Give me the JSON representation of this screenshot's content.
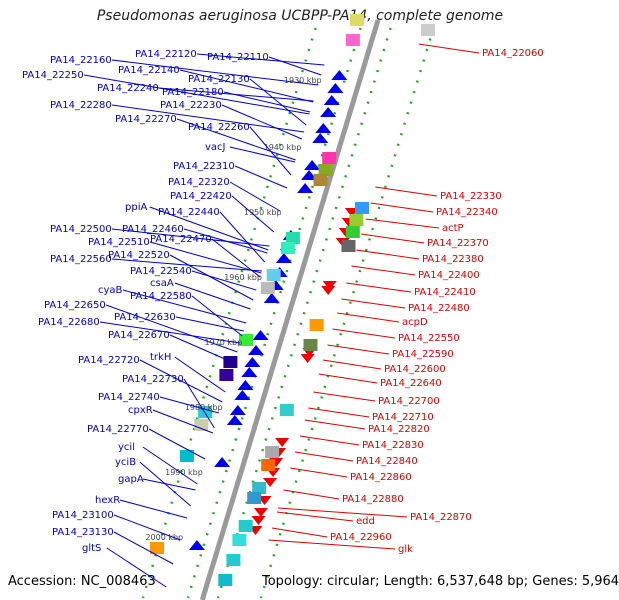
{
  "title": "Pseudomonas aeruginosa UCBPP-PA14, complete genome",
  "footer": {
    "accession": "Accession: NC_008463",
    "topology": "Topology: circular; Length: 6,537,648 bp; Genes: 5,964"
  },
  "colors": {
    "minus_strand_label": "#0000cc",
    "plus_strand_label": "#dd0000",
    "minus_gene": "#0000ee",
    "plus_gene": "#ee0000",
    "dots": "#22aa22",
    "backbone": "#9a9a9a"
  },
  "scale_labels": [
    "1930 kbp",
    "1940 kbp",
    "1950 kbp",
    "1960 kbp",
    "1970 kbp",
    "1980 kbp",
    "1990 kbp",
    "2000 kbp"
  ],
  "left_labels": [
    "PA14_22120",
    "PA14_22110",
    "PA14_22160",
    "PA14_22140",
    "PA14_22250",
    "PA14_22130",
    "PA14_22240",
    "PA14_22180",
    "PA14_22280",
    "PA14_22230",
    "PA14_22270",
    "PA14_22260",
    "vacJ",
    "PA14_22310",
    "PA14_22320",
    "PA14_22420",
    "ppiA",
    "PA14_22440",
    "PA14_22500",
    "PA14_22460",
    "PA14_22510",
    "PA14_22470",
    "PA14_22520",
    "PA14_22560",
    "PA14_22540",
    "csaA",
    "cyaB",
    "PA14_22580",
    "PA14_22650",
    "PA14_22630",
    "PA14_22680",
    "PA14_22670",
    "trkH",
    "PA14_22720",
    "PA14_22730",
    "PA14_22740",
    "cpxR",
    "PA14_22770",
    "ycil",
    "yciB",
    "gapA",
    "hexR",
    "PA14_23100",
    "PA14_23130",
    "gltS"
  ],
  "right_labels": [
    "PA14_22060",
    "PA14_22330",
    "PA14_22340",
    "actP",
    "PA14_22370",
    "PA14_22380",
    "PA14_22400",
    "PA14_22410",
    "PA14_22480",
    "acpD",
    "PA14_22550",
    "PA14_22590",
    "PA14_22600",
    "PA14_22640",
    "PA14_22700",
    "PA14_22710",
    "PA14_22820",
    "PA14_22830",
    "PA14_22840",
    "PA14_22860",
    "PA14_22870",
    "PA14_22880",
    "edd",
    "PA14_22960",
    "glk"
  ]
}
